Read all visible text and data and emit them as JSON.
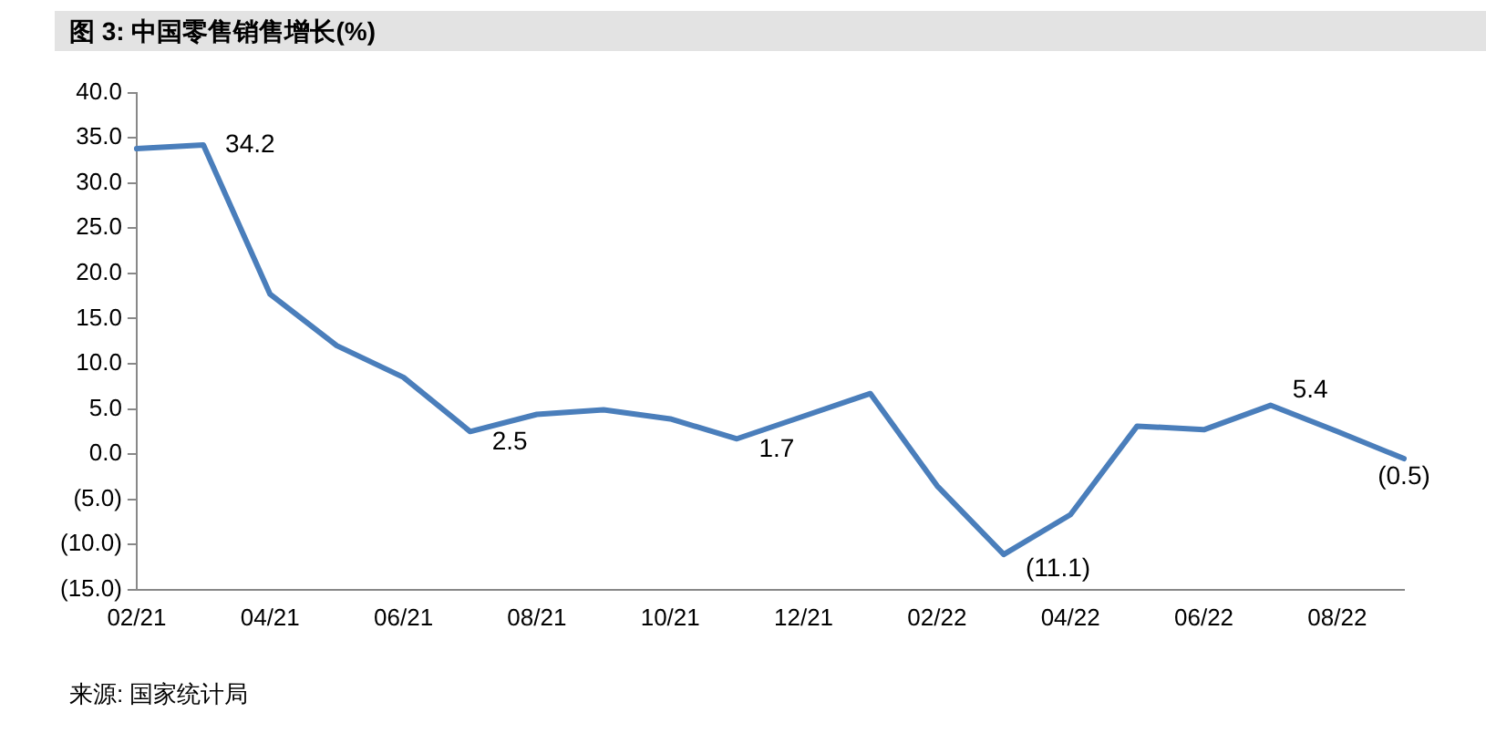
{
  "chart_data": {
    "type": "line",
    "title": "图 3: 中国零售销售增长(%)",
    "categories": [
      "02/21",
      null,
      "04/21",
      null,
      "06/21",
      null,
      "08/21",
      null,
      "10/21",
      null,
      "12/21",
      null,
      "02/22",
      null,
      "04/22",
      null,
      "06/22",
      null,
      "08/22",
      null
    ],
    "series": [
      {
        "color": "#4a7ebb",
        "values": [
          33.8,
          34.2,
          17.7,
          12.0,
          8.5,
          2.5,
          4.4,
          4.9,
          3.9,
          1.7,
          4.2,
          6.7,
          -3.5,
          -11.1,
          -6.7,
          3.1,
          2.7,
          5.4,
          2.5,
          -0.5
        ],
        "value_labels": [
          null,
          "34.2",
          null,
          null,
          null,
          "2.5",
          null,
          null,
          null,
          "1.7",
          null,
          null,
          null,
          "(11.1)",
          null,
          null,
          null,
          "5.4",
          null,
          "(0.5)"
        ]
      }
    ],
    "ylim": [
      -15,
      40
    ],
    "yticks": [
      {
        "value": -15,
        "label": "(15.0)"
      },
      {
        "value": -10,
        "label": "(10.0)"
      },
      {
        "value": -5,
        "label": "(5.0)"
      },
      {
        "value": 0,
        "label": "0.0"
      },
      {
        "value": 5,
        "label": "5.0"
      },
      {
        "value": 10,
        "label": "10.0"
      },
      {
        "value": 15,
        "label": "15.0"
      },
      {
        "value": 20,
        "label": "20.0"
      },
      {
        "value": 25,
        "label": "25.0"
      },
      {
        "value": 30,
        "label": "30.0"
      },
      {
        "value": 35,
        "label": "35.0"
      },
      {
        "value": 40,
        "label": "40.0"
      }
    ],
    "grid": false,
    "legend": false,
    "marker": "none",
    "line_style": "solid",
    "annotations": [
      "来源: 国家统计局"
    ]
  }
}
